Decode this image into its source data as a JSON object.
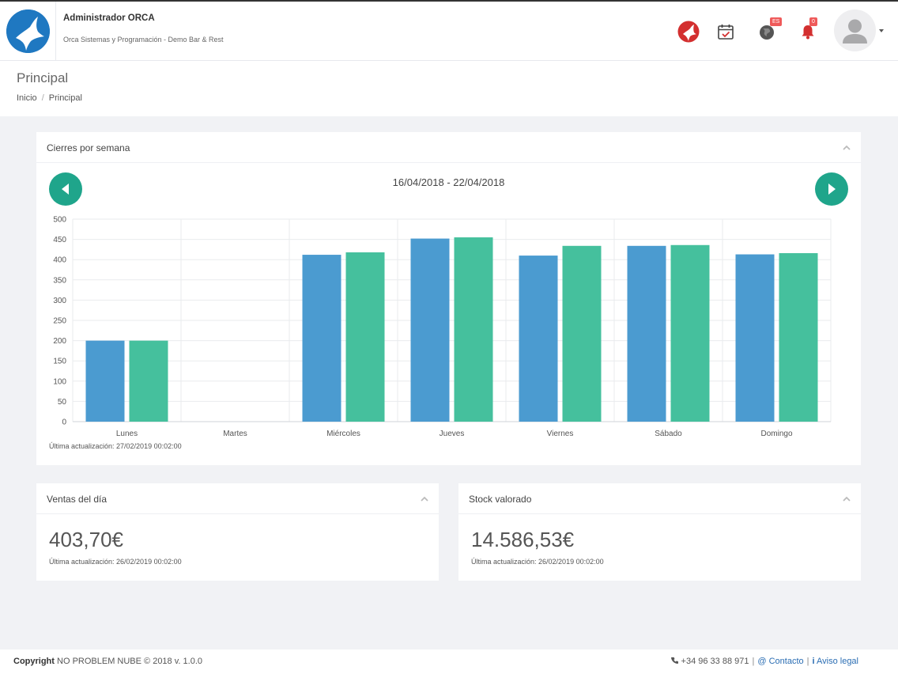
{
  "header": {
    "title": "Administrador ORCA",
    "subtitle": "Orca Sistemas y Programación - Demo Bar & Rest",
    "language_badge": "ES",
    "notifications_count": "0",
    "colors": {
      "accent": "#1fa58b",
      "logo": "#1f78c1",
      "badge": "#ef5a5a"
    }
  },
  "page": {
    "title": "Principal",
    "breadcrumb": [
      "Inicio",
      "Principal"
    ]
  },
  "weekly_panel": {
    "title": "Cierres por semana",
    "range": "16/04/2018 - 22/04/2018",
    "updated": "Última actualización: 27/02/2019 00:02:00"
  },
  "chart_data": {
    "type": "bar",
    "categories": [
      "Lunes",
      "Martes",
      "Miércoles",
      "Jueves",
      "Viernes",
      "Sábado",
      "Domingo"
    ],
    "series": [
      {
        "values": [
          200,
          0,
          412,
          452,
          410,
          434,
          413
        ],
        "color": "#4b9bd0"
      },
      {
        "values": [
          200,
          0,
          418,
          455,
          434,
          436,
          416
        ],
        "color": "#45c09d"
      }
    ],
    "ylim": [
      0,
      500
    ],
    "yticks": [
      0,
      50,
      100,
      150,
      200,
      250,
      300,
      350,
      400,
      450,
      500
    ],
    "grid": true
  },
  "sales_panel": {
    "title": "Ventas del día",
    "value": "403,70€",
    "updated": "Última actualización: 26/02/2019 00:02:00"
  },
  "stock_panel": {
    "title": "Stock valorado",
    "value": "14.586,53€",
    "updated": "Última actualización: 26/02/2019 00:02:00"
  },
  "footer": {
    "copyright_label": "Copyright",
    "copyright_text": "NO PROBLEM NUBE © 2018 v. 1.0.0",
    "phone": "+34 96 33 88 971",
    "contact": "Contacto",
    "legal": "Aviso legal"
  }
}
